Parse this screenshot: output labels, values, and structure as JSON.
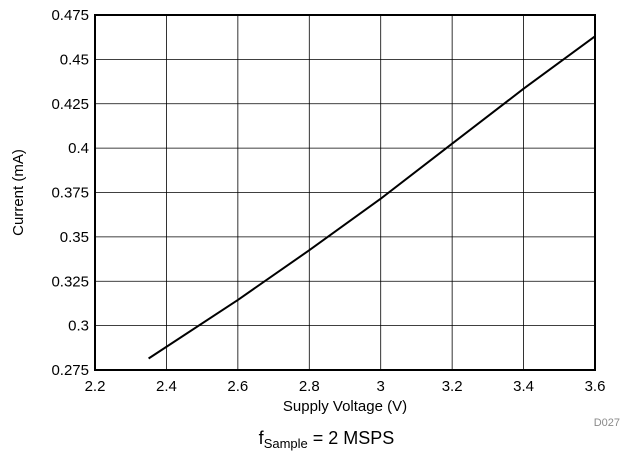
{
  "chart_data": {
    "type": "line",
    "xlabel": "Supply Voltage (V)",
    "ylabel": "Current (mA)",
    "xlim": [
      2.2,
      3.6
    ],
    "ylim": [
      0.275,
      0.475
    ],
    "x_ticks": [
      "2.2",
      "2.4",
      "2.6",
      "2.8",
      "3",
      "3.2",
      "3.4",
      "3.6"
    ],
    "y_ticks": [
      "0.275",
      "0.3",
      "0.325",
      "0.35",
      "0.375",
      "0.4",
      "0.425",
      "0.45",
      "0.475"
    ],
    "grid": true,
    "series": [
      {
        "x": [
          2.35,
          2.6,
          2.8,
          3.0,
          3.2,
          3.4,
          3.6
        ],
        "y": [
          0.2815,
          0.3145,
          0.3425,
          0.3715,
          0.4025,
          0.4335,
          0.463
        ]
      }
    ],
    "line_color": "#000000",
    "figure_id": "D027",
    "caption": {
      "main": "f",
      "subscript": "Sample",
      "rest": " = 2 MSPS"
    }
  }
}
